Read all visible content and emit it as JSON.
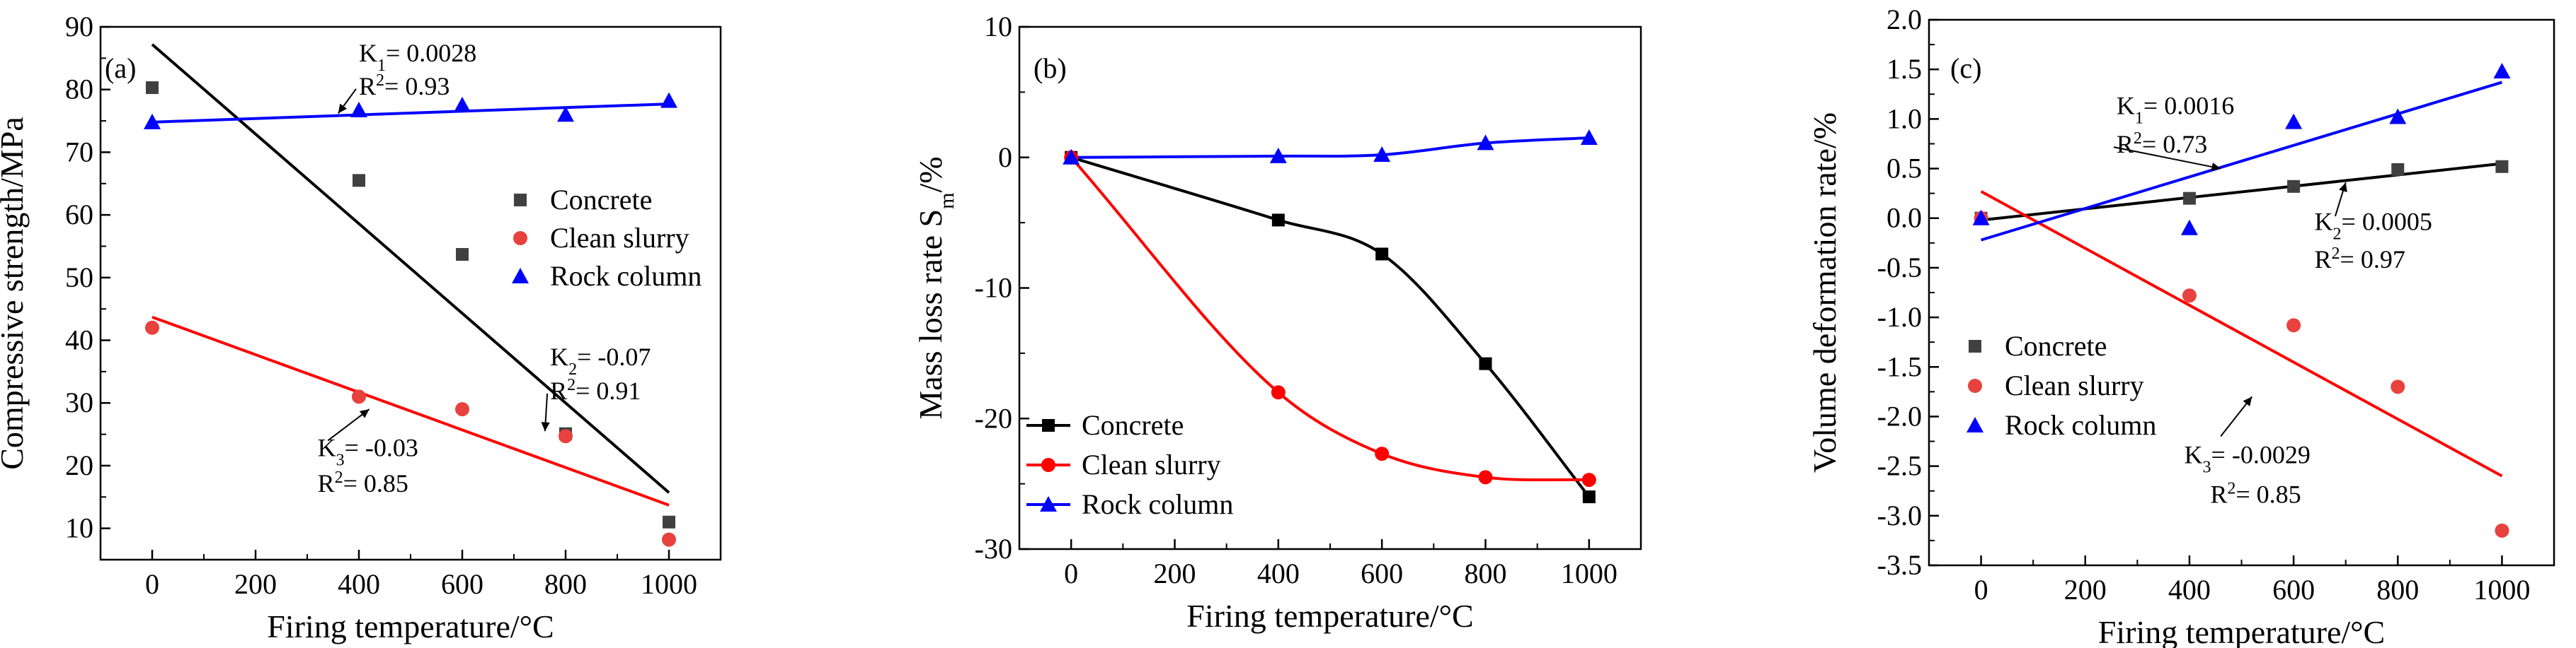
{
  "chart_data": [
    {
      "panel": "(a)",
      "type": "scatter",
      "xlabel": "Firing temperature/°C",
      "ylabel": "Compressive strength/MPa",
      "xlim": [
        -100,
        1100
      ],
      "ylim": [
        5,
        90
      ],
      "xticks": [
        0,
        200,
        400,
        600,
        800,
        1000
      ],
      "yticks": [
        10,
        20,
        30,
        40,
        50,
        60,
        70,
        80,
        90
      ],
      "legend_position": "right",
      "series": [
        {
          "name": "Concrete",
          "color": "#404040",
          "marker": "square",
          "x": [
            0,
            400,
            600,
            800,
            1000
          ],
          "y": [
            80.3,
            65.5,
            53.7,
            25.1,
            11.0
          ],
          "fit": {
            "type": "linear",
            "x": [
              0,
              1000
            ],
            "y": [
              87.2,
              15.7
            ],
            "color": "#000000"
          }
        },
        {
          "name": "Clean slurry",
          "color": "#e8413e",
          "marker": "circle",
          "x": [
            0,
            400,
            600,
            800,
            1000
          ],
          "y": [
            42.0,
            31.0,
            29.0,
            24.7,
            8.2
          ],
          "fit": {
            "type": "linear",
            "x": [
              0,
              1000
            ],
            "y": [
              43.7,
              13.7
            ],
            "color": "#ff0000"
          }
        },
        {
          "name": "Rock column",
          "color": "#0000ff",
          "marker": "triangle",
          "x": [
            0,
            400,
            600,
            800,
            1000
          ],
          "y": [
            74.8,
            76.7,
            77.5,
            76.0,
            78.2
          ],
          "fit": {
            "type": "linear",
            "x": [
              0,
              1000
            ],
            "y": [
              74.8,
              77.7
            ],
            "color": "#0000ff"
          }
        }
      ],
      "annotations": [
        {
          "main": "K",
          "sub": "1",
          "rest": "= 0.0028",
          "x": 400,
          "y": 84.5
        },
        {
          "main": "R",
          "sup": "2",
          "rest": "= 0.93",
          "x": 400,
          "y": 79.2,
          "arrow_to": [
            360,
            76.2
          ]
        },
        {
          "main": "K",
          "sub": "2",
          "rest": "= -0.07",
          "x": 770,
          "y": 36.0
        },
        {
          "main": "R",
          "sup": "2",
          "rest": "= 0.91",
          "x": 770,
          "y": 30.6,
          "arrow_to": [
            760,
            25.5
          ]
        },
        {
          "main": "K",
          "sub": "3",
          "rest": "= -0.03",
          "x": 320,
          "y": 21.5,
          "arrow_from": [
            340,
            24.0
          ],
          "arrow_to": [
            420,
            29.0
          ]
        },
        {
          "main": "R",
          "sup": "2",
          "rest": "= 0.85",
          "x": 320,
          "y": 15.8
        }
      ]
    },
    {
      "panel": "(b)",
      "type": "line",
      "xlabel": "Firing temperature/°C",
      "ylabel_main": "Mass loss rate S",
      "ylabel_sub": "m",
      "ylabel_rest": "/%",
      "xlim": [
        -100,
        1100
      ],
      "ylim": [
        -30,
        10
      ],
      "xticks": [
        0,
        200,
        400,
        600,
        800,
        1000
      ],
      "yticks": [
        -30,
        -20,
        -10,
        0,
        10
      ],
      "legend_position": "bottom-left",
      "series": [
        {
          "name": "Concrete",
          "color": "#000000",
          "marker": "square",
          "x": [
            0,
            400,
            600,
            800,
            1000
          ],
          "y": [
            0,
            -4.8,
            -7.4,
            -15.8,
            -26.0
          ]
        },
        {
          "name": "Clean slurry",
          "color": "#ff0000",
          "marker": "circle",
          "x": [
            0,
            400,
            600,
            800,
            1000
          ],
          "y": [
            0,
            -18.0,
            -22.7,
            -24.5,
            -24.7
          ]
        },
        {
          "name": "Rock column",
          "color": "#0000ff",
          "marker": "triangle",
          "x": [
            0,
            400,
            600,
            800,
            1000
          ],
          "y": [
            0,
            0.1,
            0.2,
            1.1,
            1.5
          ]
        }
      ],
      "annotations": []
    },
    {
      "panel": "(c)",
      "type": "scatter",
      "xlabel": "Firing temperature/°C",
      "ylabel": "Volume deformation rate/%",
      "xlim": [
        -100,
        1100
      ],
      "ylim": [
        -3.5,
        2.0
      ],
      "xticks": [
        0,
        200,
        400,
        600,
        800,
        1000
      ],
      "yticks": [
        -3.5,
        -3.0,
        -2.5,
        -2.0,
        -1.5,
        -1.0,
        -0.5,
        0.0,
        0.5,
        1.0,
        1.5,
        2.0
      ],
      "ytick_labels": [
        "-3.5",
        "-3.0",
        "-2.5",
        "-2.0",
        "-1.5",
        "-1.0",
        "-0.5",
        "0.0",
        "0.5",
        "1.0",
        "1.5",
        "2.0"
      ],
      "legend_position": "bottom-left",
      "series": [
        {
          "name": "Concrete",
          "color": "#404040",
          "marker": "square",
          "x": [
            0,
            400,
            600,
            800,
            1000
          ],
          "y": [
            0,
            0.2,
            0.32,
            0.49,
            0.52
          ],
          "fit": {
            "type": "linear",
            "x": [
              0,
              1000
            ],
            "y": [
              -0.02,
              0.55
            ],
            "color": "#000000"
          }
        },
        {
          "name": "Clean slurry",
          "color": "#e8413e",
          "marker": "circle",
          "x": [
            0,
            400,
            600,
            800,
            1000
          ],
          "y": [
            0,
            -0.78,
            -1.08,
            -1.7,
            -3.15
          ],
          "fit": {
            "type": "linear",
            "x": [
              0,
              1000
            ],
            "y": [
              0.27,
              -2.6
            ],
            "color": "#ff0000"
          }
        },
        {
          "name": "Rock column",
          "color": "#0000ff",
          "marker": "triangle",
          "x": [
            0,
            400,
            600,
            800,
            1000
          ],
          "y": [
            0,
            -0.1,
            0.97,
            1.02,
            1.48
          ],
          "fit": {
            "type": "linear",
            "x": [
              0,
              1000
            ],
            "y": [
              -0.22,
              1.37
            ],
            "color": "#0000ff"
          }
        }
      ],
      "annotations": [
        {
          "main": "K",
          "sub": "1",
          "rest": "= 0.0016",
          "x": 260,
          "y": 1.05
        },
        {
          "main": "R",
          "sup": "2",
          "rest": "= 0.73",
          "x": 260,
          "y": 0.66,
          "arrow_to": [
            460,
            0.5
          ]
        },
        {
          "main": "K",
          "sub": "2",
          "rest": "= 0.0005",
          "x": 640,
          "y": -0.12,
          "arrow_from": [
            680,
            0.02
          ],
          "arrow_to": [
            700,
            0.36
          ]
        },
        {
          "main": "R",
          "sup": "2",
          "rest": "= 0.97",
          "x": 640,
          "y": -0.5
        },
        {
          "main": "K",
          "sub": "3",
          "rest": "= -0.0029",
          "x": 390,
          "y": -2.47,
          "arrow_from": [
            460,
            -2.2
          ],
          "arrow_to": [
            520,
            -1.8
          ]
        },
        {
          "main": "R",
          "sup": "2",
          "rest": "= 0.85",
          "x": 440,
          "y": -2.87
        }
      ]
    }
  ]
}
